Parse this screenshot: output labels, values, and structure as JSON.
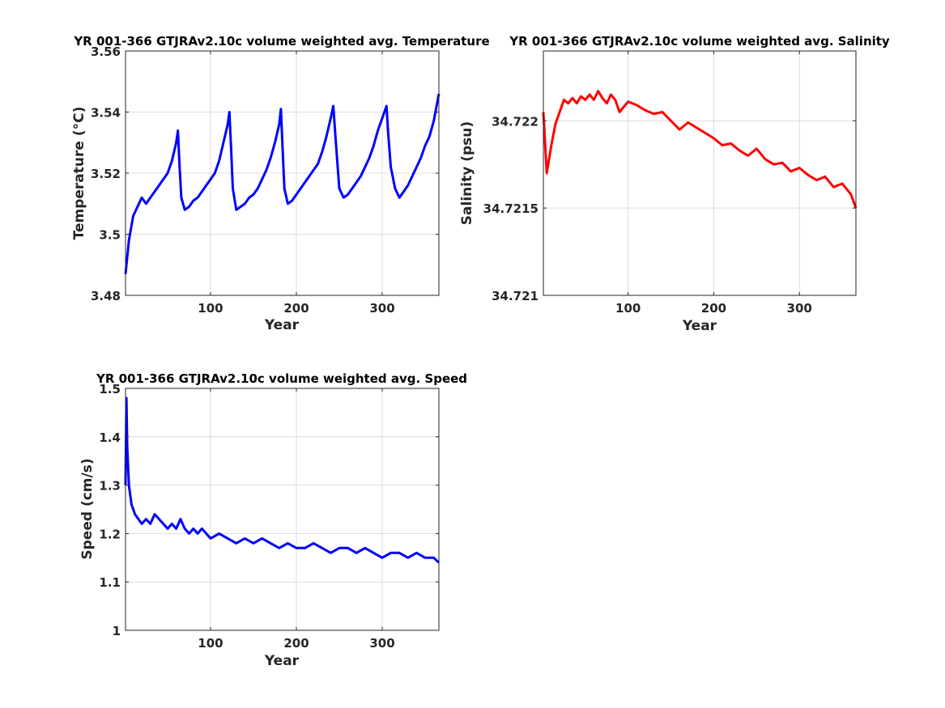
{
  "chart_data": [
    {
      "type": "line",
      "title": "YR 001-366 GTJRAv2.10c volume weighted avg. Temperature",
      "xlabel": "Year",
      "ylabel": "Temperature (°C)",
      "xlim": [
        1,
        366
      ],
      "ylim": [
        3.48,
        3.56
      ],
      "x_ticks": [
        100,
        200,
        300
      ],
      "y_ticks": [
        3.48,
        3.5,
        3.52,
        3.54,
        3.56
      ],
      "y_tick_labels": [
        "3.48",
        "3.5",
        "3.52",
        "3.54",
        "3.56"
      ],
      "grid": true,
      "color": "#0000ff",
      "series": [
        {
          "x": [
            1,
            5,
            10,
            15,
            20,
            25,
            30,
            35,
            40,
            45,
            50,
            55,
            60,
            62,
            64,
            66,
            70,
            75,
            80,
            85,
            90,
            95,
            100,
            105,
            110,
            115,
            120,
            122,
            124,
            126,
            130,
            135,
            140,
            145,
            150,
            155,
            160,
            165,
            170,
            175,
            180,
            182,
            184,
            186,
            190,
            195,
            200,
            205,
            210,
            215,
            220,
            225,
            230,
            235,
            240,
            243,
            246,
            250,
            255,
            260,
            265,
            270,
            275,
            280,
            285,
            290,
            295,
            300,
            305,
            307,
            310,
            315,
            320,
            325,
            330,
            335,
            340,
            345,
            350,
            355,
            360,
            366
          ],
          "values": [
            3.487,
            3.498,
            3.506,
            3.509,
            3.512,
            3.51,
            3.512,
            3.514,
            3.516,
            3.518,
            3.52,
            3.524,
            3.53,
            3.534,
            3.522,
            3.512,
            3.508,
            3.509,
            3.511,
            3.512,
            3.514,
            3.516,
            3.518,
            3.52,
            3.524,
            3.53,
            3.536,
            3.54,
            3.528,
            3.515,
            3.508,
            3.509,
            3.51,
            3.512,
            3.513,
            3.515,
            3.518,
            3.521,
            3.525,
            3.53,
            3.536,
            3.541,
            3.528,
            3.515,
            3.51,
            3.511,
            3.513,
            3.515,
            3.517,
            3.519,
            3.521,
            3.523,
            3.527,
            3.532,
            3.538,
            3.542,
            3.53,
            3.515,
            3.512,
            3.513,
            3.515,
            3.517,
            3.519,
            3.522,
            3.525,
            3.529,
            3.534,
            3.538,
            3.542,
            3.533,
            3.522,
            3.515,
            3.512,
            3.514,
            3.516,
            3.519,
            3.522,
            3.525,
            3.529,
            3.532,
            3.537,
            3.546
          ]
        }
      ]
    },
    {
      "type": "line",
      "title": "YR 001-366 GTJRAv2.10c volume weighted avg. Salinity",
      "xlabel": "Year",
      "ylabel": "Salinity (psu)",
      "xlim": [
        1,
        366
      ],
      "ylim": [
        34.721,
        34.7224
      ],
      "x_ticks": [
        100,
        200,
        300
      ],
      "y_ticks": [
        34.721,
        34.7215,
        34.722
      ],
      "y_tick_labels": [
        "34.721",
        "34.7215",
        "34.722"
      ],
      "grid": true,
      "color": "#ff0000",
      "series": [
        {
          "x": [
            1,
            5,
            10,
            15,
            20,
            25,
            30,
            35,
            40,
            45,
            50,
            55,
            60,
            65,
            70,
            75,
            80,
            85,
            90,
            95,
            100,
            110,
            120,
            130,
            140,
            150,
            160,
            170,
            180,
            190,
            200,
            210,
            220,
            230,
            240,
            250,
            260,
            270,
            280,
            290,
            300,
            310,
            320,
            330,
            340,
            350,
            360,
            366
          ],
          "values": [
            34.72205,
            34.7217,
            34.72185,
            34.72198,
            34.72205,
            34.72212,
            34.7221,
            34.72213,
            34.7221,
            34.72214,
            34.72212,
            34.72215,
            34.72212,
            34.72217,
            34.72213,
            34.7221,
            34.72215,
            34.72212,
            34.72205,
            34.72208,
            34.72211,
            34.72209,
            34.72206,
            34.72204,
            34.72205,
            34.722,
            34.72195,
            34.72199,
            34.72196,
            34.72193,
            34.7219,
            34.72186,
            34.72187,
            34.72183,
            34.7218,
            34.72184,
            34.72178,
            34.72175,
            34.72176,
            34.72171,
            34.72173,
            34.72169,
            34.72166,
            34.72168,
            34.72162,
            34.72164,
            34.72158,
            34.7215
          ]
        }
      ]
    },
    {
      "type": "line",
      "title": "YR 001-366 GTJRAv2.10c volume weighted avg. Speed",
      "xlabel": "Year",
      "ylabel": "Speed (cm/s)",
      "xlim": [
        1,
        366
      ],
      "ylim": [
        1.0,
        1.5
      ],
      "x_ticks": [
        100,
        200,
        300
      ],
      "y_ticks": [
        1.0,
        1.1,
        1.2,
        1.3,
        1.4,
        1.5
      ],
      "y_tick_labels": [
        "1",
        "1.1",
        "1.2",
        "1.3",
        "1.4",
        "1.5"
      ],
      "grid": true,
      "color": "#0000ff",
      "series": [
        {
          "x": [
            1,
            2,
            3,
            5,
            8,
            12,
            16,
            20,
            25,
            30,
            35,
            40,
            45,
            50,
            55,
            60,
            65,
            70,
            75,
            80,
            85,
            90,
            95,
            100,
            110,
            120,
            130,
            140,
            150,
            160,
            170,
            180,
            190,
            200,
            210,
            220,
            230,
            240,
            250,
            260,
            270,
            280,
            290,
            300,
            310,
            320,
            330,
            340,
            350,
            360,
            366
          ],
          "values": [
            1.3,
            1.48,
            1.38,
            1.3,
            1.26,
            1.24,
            1.23,
            1.22,
            1.23,
            1.22,
            1.24,
            1.23,
            1.22,
            1.21,
            1.22,
            1.21,
            1.23,
            1.21,
            1.2,
            1.21,
            1.2,
            1.21,
            1.2,
            1.19,
            1.2,
            1.19,
            1.18,
            1.19,
            1.18,
            1.19,
            1.18,
            1.17,
            1.18,
            1.17,
            1.17,
            1.18,
            1.17,
            1.16,
            1.17,
            1.17,
            1.16,
            1.17,
            1.16,
            1.15,
            1.16,
            1.16,
            1.15,
            1.16,
            1.15,
            1.15,
            1.14
          ]
        }
      ]
    }
  ]
}
